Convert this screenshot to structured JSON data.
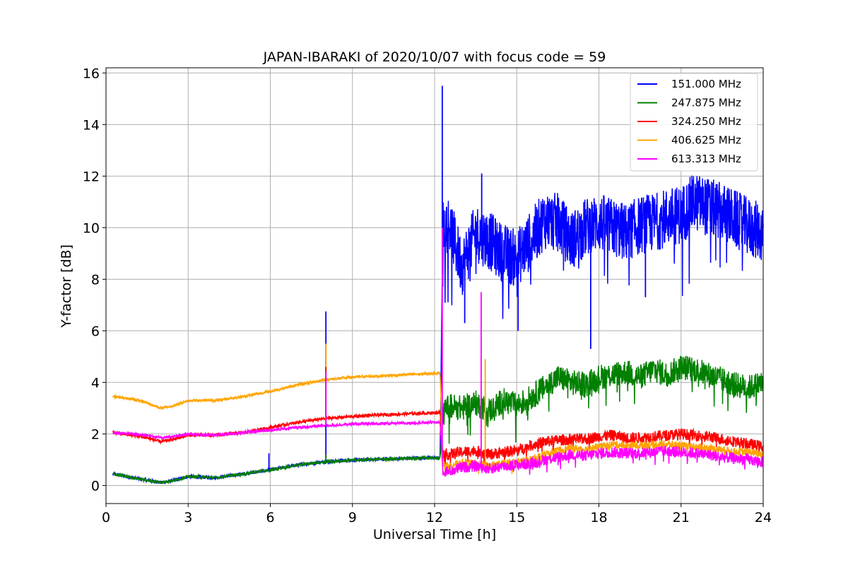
{
  "chart_data": {
    "type": "line",
    "title": "JAPAN-IBARAKI of 2020/10/07 with focus code = 59",
    "xlabel": "Universal Time [h]",
    "ylabel": "Y-factor [dB]",
    "xlim": [
      0,
      24
    ],
    "ylim": [
      -0.7,
      16.2
    ],
    "xticks": [
      0,
      3,
      6,
      9,
      12,
      15,
      18,
      21,
      24
    ],
    "yticks": [
      0,
      2,
      4,
      6,
      8,
      10,
      12,
      14,
      16
    ],
    "grid": true,
    "legend_position": "top-right",
    "x": [
      0.25,
      1.0,
      1.5,
      2.0,
      2.5,
      3.0,
      4.0,
      5.0,
      6.0,
      7.0,
      8.0,
      9.0,
      10.0,
      11.0,
      12.0,
      12.2,
      12.3,
      12.5,
      13.0,
      13.5,
      14.0,
      14.5,
      15.0,
      15.5,
      16.0,
      16.5,
      17.0,
      17.5,
      18.0,
      18.5,
      19.0,
      19.5,
      20.0,
      20.5,
      21.0,
      21.5,
      22.0,
      22.5,
      23.0,
      23.5,
      24.0
    ],
    "series": [
      {
        "name": "151.000 MHz",
        "color": "#0000ff",
        "values": [
          0.45,
          0.3,
          0.2,
          0.12,
          0.2,
          0.35,
          0.3,
          0.45,
          0.6,
          0.8,
          0.92,
          0.98,
          1.02,
          1.05,
          1.08,
          1.05,
          10.0,
          10.2,
          8.5,
          9.8,
          9.5,
          9.0,
          8.8,
          9.5,
          10.3,
          10.2,
          9.5,
          10.0,
          10.2,
          10.0,
          9.8,
          10.1,
          10.2,
          10.4,
          10.5,
          11.0,
          10.8,
          10.6,
          10.3,
          10.0,
          9.8
        ]
      },
      {
        "name": "247.875 MHz",
        "color": "#008000",
        "values": [
          0.45,
          0.3,
          0.2,
          0.12,
          0.2,
          0.35,
          0.3,
          0.45,
          0.6,
          0.8,
          0.92,
          0.98,
          1.02,
          1.05,
          1.08,
          1.05,
          2.7,
          3.1,
          3.0,
          3.2,
          2.9,
          3.3,
          3.1,
          3.4,
          3.8,
          4.2,
          4.0,
          3.9,
          4.2,
          4.3,
          4.4,
          4.2,
          4.5,
          4.3,
          4.6,
          4.5,
          4.3,
          4.1,
          3.9,
          3.8,
          4.0
        ]
      },
      {
        "name": "324.250 MHz",
        "color": "#ff0000",
        "values": [
          2.05,
          1.95,
          1.85,
          1.7,
          1.8,
          1.95,
          1.95,
          2.05,
          2.25,
          2.45,
          2.6,
          2.68,
          2.74,
          2.78,
          2.82,
          2.85,
          1.2,
          1.2,
          1.3,
          1.35,
          1.2,
          1.3,
          1.35,
          1.55,
          1.7,
          1.75,
          1.8,
          1.8,
          1.9,
          1.95,
          1.85,
          1.85,
          1.9,
          1.95,
          2.0,
          1.95,
          1.9,
          1.8,
          1.7,
          1.6,
          1.5
        ]
      },
      {
        "name": "406.625 MHz",
        "color": "#ffa500",
        "values": [
          3.45,
          3.35,
          3.2,
          3.0,
          3.1,
          3.3,
          3.3,
          3.45,
          3.65,
          3.9,
          4.1,
          4.2,
          4.25,
          4.3,
          4.35,
          4.38,
          0.8,
          0.75,
          0.9,
          0.85,
          0.75,
          0.85,
          0.9,
          1.0,
          1.2,
          1.35,
          1.45,
          1.4,
          1.5,
          1.6,
          1.55,
          1.55,
          1.6,
          1.6,
          1.55,
          1.5,
          1.45,
          1.4,
          1.3,
          1.3,
          1.2
        ]
      },
      {
        "name": "613.313 MHz",
        "color": "#ff00ff",
        "values": [
          2.05,
          2.0,
          1.95,
          1.85,
          1.9,
          2.0,
          1.95,
          2.05,
          2.15,
          2.25,
          2.32,
          2.38,
          2.4,
          2.42,
          2.45,
          2.45,
          0.6,
          0.55,
          0.7,
          0.75,
          0.65,
          0.75,
          0.8,
          0.85,
          1.0,
          1.1,
          1.2,
          1.15,
          1.25,
          1.3,
          1.25,
          1.25,
          1.3,
          1.35,
          1.3,
          1.25,
          1.2,
          1.1,
          1.05,
          1.0,
          0.9
        ]
      }
    ],
    "spikes": [
      {
        "x": 5.95,
        "series": "151.000 MHz",
        "peak": 1.25
      },
      {
        "x": 8.03,
        "series": "151.000 MHz",
        "peak": 6.75
      },
      {
        "x": 8.03,
        "series": "406.625 MHz",
        "peak": 5.5
      },
      {
        "x": 8.03,
        "series": "324.250 MHz",
        "peak": 4.6
      },
      {
        "x": 8.03,
        "series": "613.313 MHz",
        "peak": 4.4
      },
      {
        "x": 8.03,
        "series": "247.875 MHz",
        "peak": 1.2
      },
      {
        "x": 12.28,
        "series": "151.000 MHz",
        "peak": 15.5
      },
      {
        "x": 12.28,
        "series": "613.313 MHz",
        "peak": 10.0
      },
      {
        "x": 13.72,
        "series": "151.000 MHz",
        "peak": 12.1
      },
      {
        "x": 13.7,
        "series": "613.313 MHz",
        "peak": 7.5
      },
      {
        "x": 13.85,
        "series": "406.625 MHz",
        "peak": 4.9
      },
      {
        "x": 17.7,
        "series": "151.000 MHz",
        "peak": 5.3
      },
      {
        "x": 19.7,
        "series": "151.000 MHz",
        "peak": 7.3
      },
      {
        "x": 15.05,
        "series": "151.000 MHz",
        "peak": 6.0
      },
      {
        "x": 13.1,
        "series": "151.000 MHz",
        "peak": 6.3
      }
    ]
  }
}
